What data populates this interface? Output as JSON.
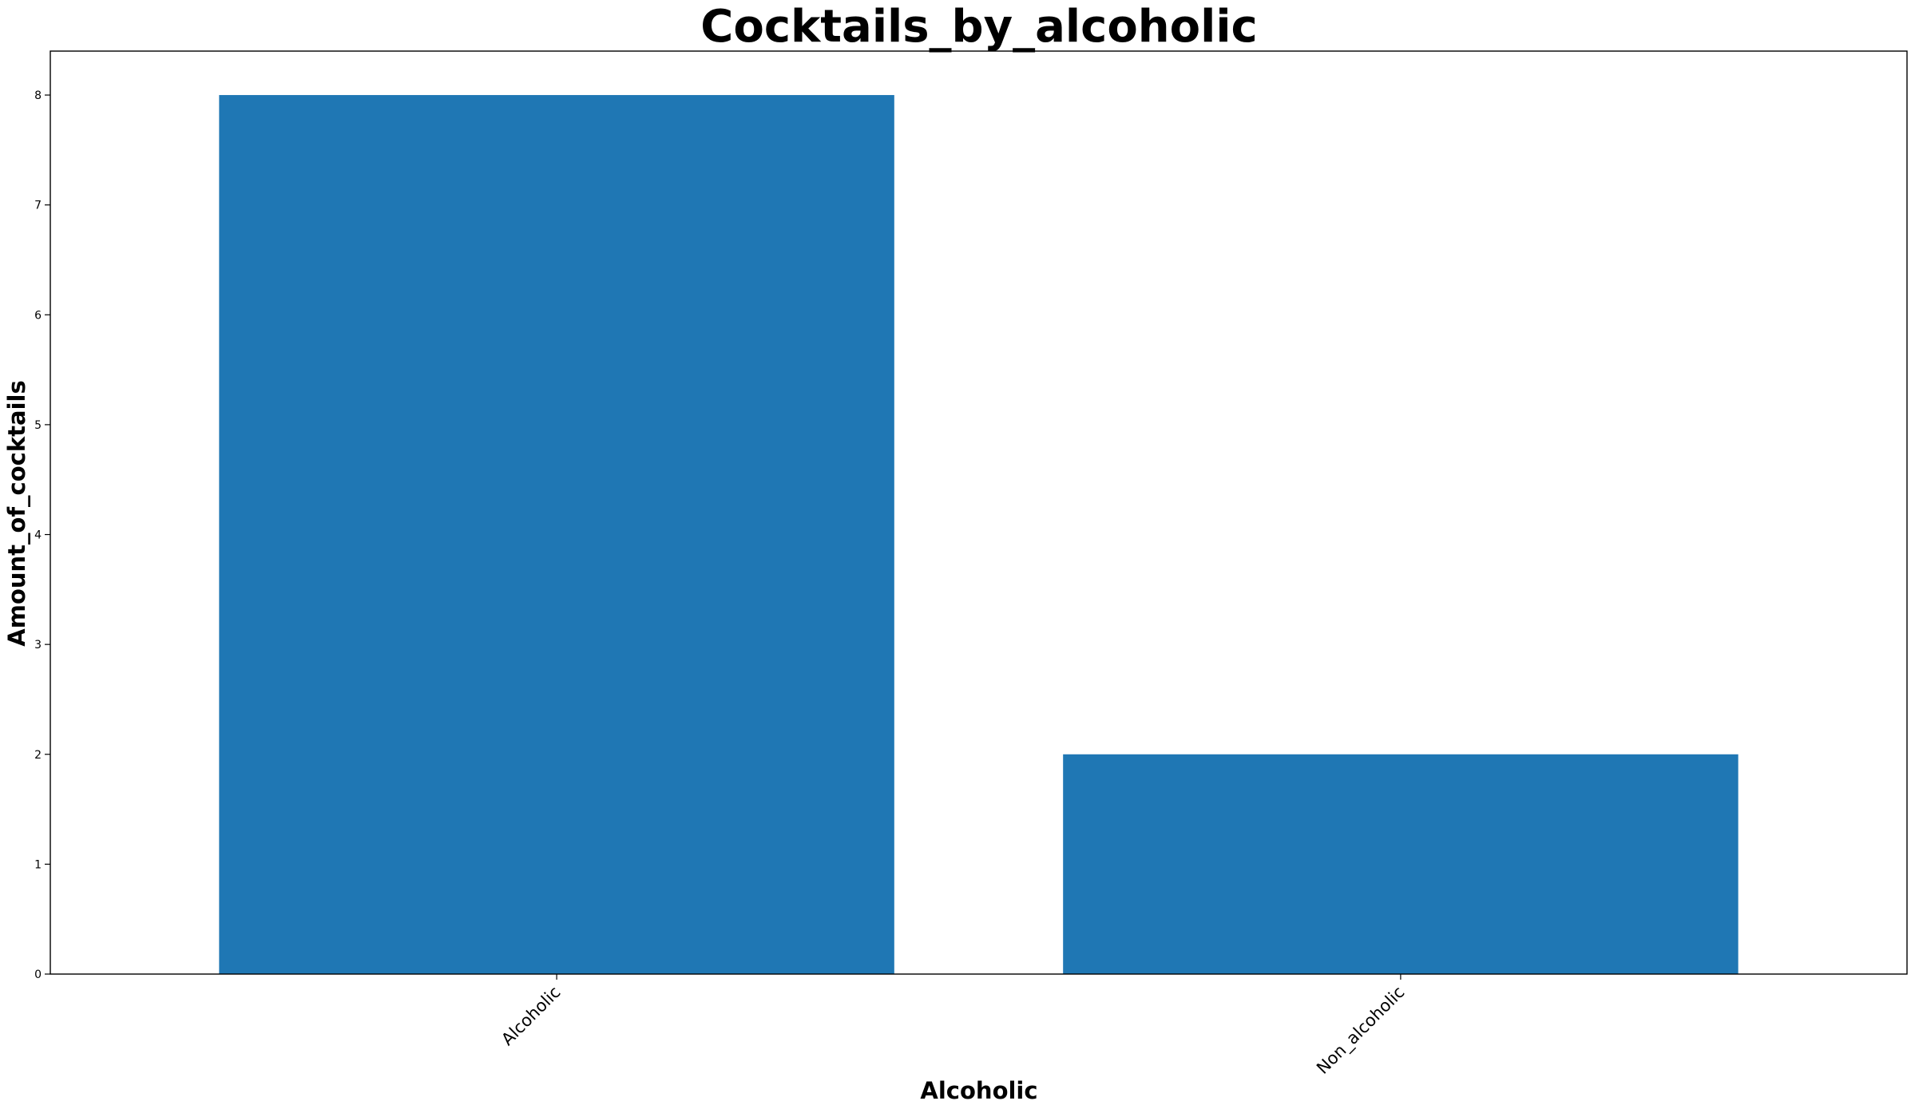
{
  "chart_data": {
    "type": "bar",
    "title": "Cocktails_by_alcoholic",
    "xlabel": "Alcoholic",
    "ylabel": "Amount_of_cocktails",
    "categories": [
      "Alcoholic",
      "Non_alcoholic"
    ],
    "values": [
      8,
      2
    ],
    "ylim": [
      0,
      8.4
    ],
    "yticks": [
      0,
      1,
      2,
      3,
      4,
      5,
      6,
      7,
      8
    ],
    "bar_color": "#1f77b4",
    "grid": false,
    "legend": "none",
    "xtick_rotation": 45
  }
}
